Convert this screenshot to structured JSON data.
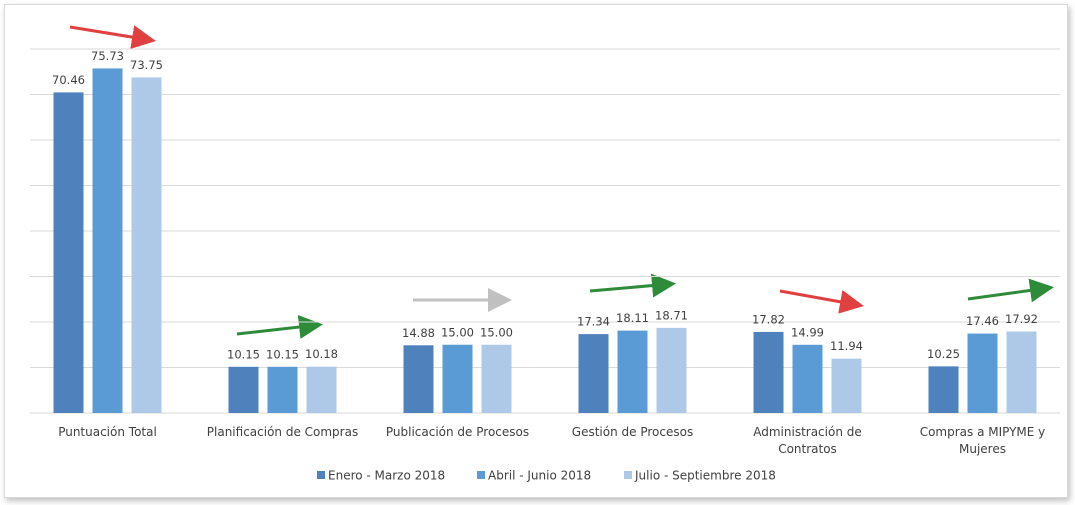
{
  "chart_data": {
    "type": "bar",
    "categories": [
      "Puntuación Total",
      "Planificación de Compras",
      "Publicación de Procesos",
      "Gestión de Procesos",
      "Administración de Contratos",
      "Compras a MIPYME y Mujeres"
    ],
    "series": [
      {
        "name": "Enero - Marzo 2018",
        "color": "#4f81bd",
        "values": [
          70.46,
          10.15,
          14.88,
          17.34,
          17.82,
          10.25
        ],
        "value_labels": [
          "70.46",
          "10.15",
          "14.88",
          "17.34",
          "17.82",
          "10.25"
        ]
      },
      {
        "name": "Abril - Junio 2018",
        "color": "#5b9bd5",
        "values": [
          75.73,
          10.15,
          15.0,
          18.11,
          14.99,
          17.46
        ],
        "value_labels": [
          "75.73",
          "10.15",
          "15.00",
          "18.11",
          "14.99",
          "17.46"
        ]
      },
      {
        "name": "Julio - Septiembre 2018",
        "color": "#aec8e8",
        "values": [
          73.75,
          10.18,
          15.0,
          18.71,
          11.94,
          17.92
        ],
        "value_labels": [
          "73.75",
          "10.18",
          "15.00",
          "18.71",
          "11.94",
          "17.92"
        ]
      }
    ],
    "ylim": [
      0,
      80
    ],
    "yticks": [
      0,
      10,
      20,
      30,
      40,
      50,
      60,
      70,
      80
    ],
    "grid": true,
    "legend": "bottom"
  }
}
